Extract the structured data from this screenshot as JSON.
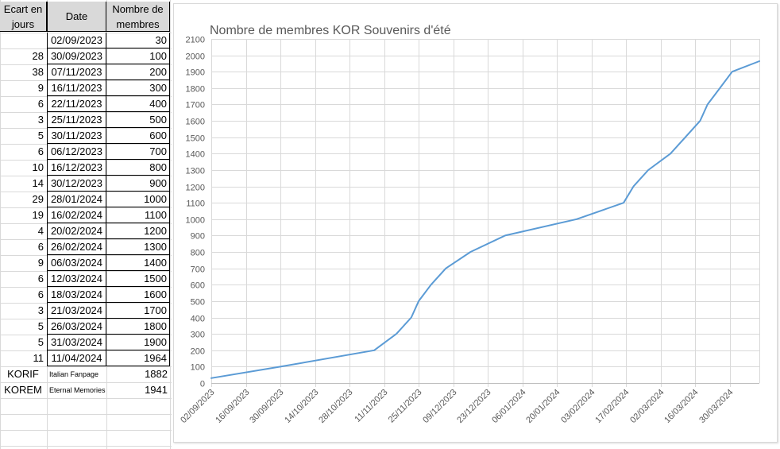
{
  "table": {
    "headers": [
      "Ecart en\njours",
      "Date",
      "Nombre de\nmembres"
    ],
    "rows": [
      {
        "gap": "",
        "date": "02/09/2023",
        "members": "30"
      },
      {
        "gap": "28",
        "date": "30/09/2023",
        "members": "100"
      },
      {
        "gap": "38",
        "date": "07/11/2023",
        "members": "200"
      },
      {
        "gap": "9",
        "date": "16/11/2023",
        "members": "300"
      },
      {
        "gap": "6",
        "date": "22/11/2023",
        "members": "400"
      },
      {
        "gap": "3",
        "date": "25/11/2023",
        "members": "500"
      },
      {
        "gap": "5",
        "date": "30/11/2023",
        "members": "600"
      },
      {
        "gap": "6",
        "date": "06/12/2023",
        "members": "700"
      },
      {
        "gap": "10",
        "date": "16/12/2023",
        "members": "800"
      },
      {
        "gap": "14",
        "date": "30/12/2023",
        "members": "900"
      },
      {
        "gap": "29",
        "date": "28/01/2024",
        "members": "1000"
      },
      {
        "gap": "19",
        "date": "16/02/2024",
        "members": "1100"
      },
      {
        "gap": "4",
        "date": "20/02/2024",
        "members": "1200"
      },
      {
        "gap": "6",
        "date": "26/02/2024",
        "members": "1300"
      },
      {
        "gap": "9",
        "date": "06/03/2024",
        "members": "1400"
      },
      {
        "gap": "6",
        "date": "12/03/2024",
        "members": "1500"
      },
      {
        "gap": "6",
        "date": "18/03/2024",
        "members": "1600"
      },
      {
        "gap": "3",
        "date": "21/03/2024",
        "members": "1700"
      },
      {
        "gap": "5",
        "date": "26/03/2024",
        "members": "1800"
      },
      {
        "gap": "5",
        "date": "31/03/2024",
        "members": "1900"
      },
      {
        "gap": "11",
        "date": "11/04/2024",
        "members": "1964"
      }
    ],
    "extra_rows": [
      {
        "label": "KORIF",
        "name": "Italian Fanpage",
        "members": "1882"
      },
      {
        "label": "KOREM",
        "name": "Eternal Memories",
        "members": "1941"
      }
    ]
  },
  "colors": {
    "line": "#5b9bd5",
    "grid": "#d9d9d9",
    "text": "#595959",
    "header_bg": "#d9d9d9"
  },
  "chart_data": {
    "type": "line",
    "title": "Nombre de membres KOR Souvenirs d'été",
    "x": [
      "02/09/2023",
      "30/09/2023",
      "07/11/2023",
      "16/11/2023",
      "22/11/2023",
      "25/11/2023",
      "30/11/2023",
      "06/12/2023",
      "16/12/2023",
      "30/12/2023",
      "28/01/2024",
      "16/02/2024",
      "20/02/2024",
      "26/02/2024",
      "06/03/2024",
      "12/03/2024",
      "18/03/2024",
      "21/03/2024",
      "26/03/2024",
      "31/03/2024",
      "11/04/2024"
    ],
    "y": [
      30,
      100,
      200,
      300,
      400,
      500,
      600,
      700,
      800,
      900,
      1000,
      1100,
      1200,
      1300,
      1400,
      1500,
      1600,
      1700,
      1800,
      1900,
      1964
    ],
    "x_ticks": [
      "02/09/2023",
      "16/09/2023",
      "30/09/2023",
      "14/10/2023",
      "28/10/2023",
      "11/11/2023",
      "25/11/2023",
      "09/12/2023",
      "23/12/2023",
      "06/01/2024",
      "20/01/2024",
      "03/02/2024",
      "17/02/2024",
      "02/03/2024",
      "16/03/2024",
      "30/03/2024"
    ],
    "xlim": [
      "02/09/2023",
      "11/04/2024"
    ],
    "ylim": [
      0,
      2100
    ],
    "ytick_step": 100,
    "grid": true,
    "legend": "none"
  }
}
